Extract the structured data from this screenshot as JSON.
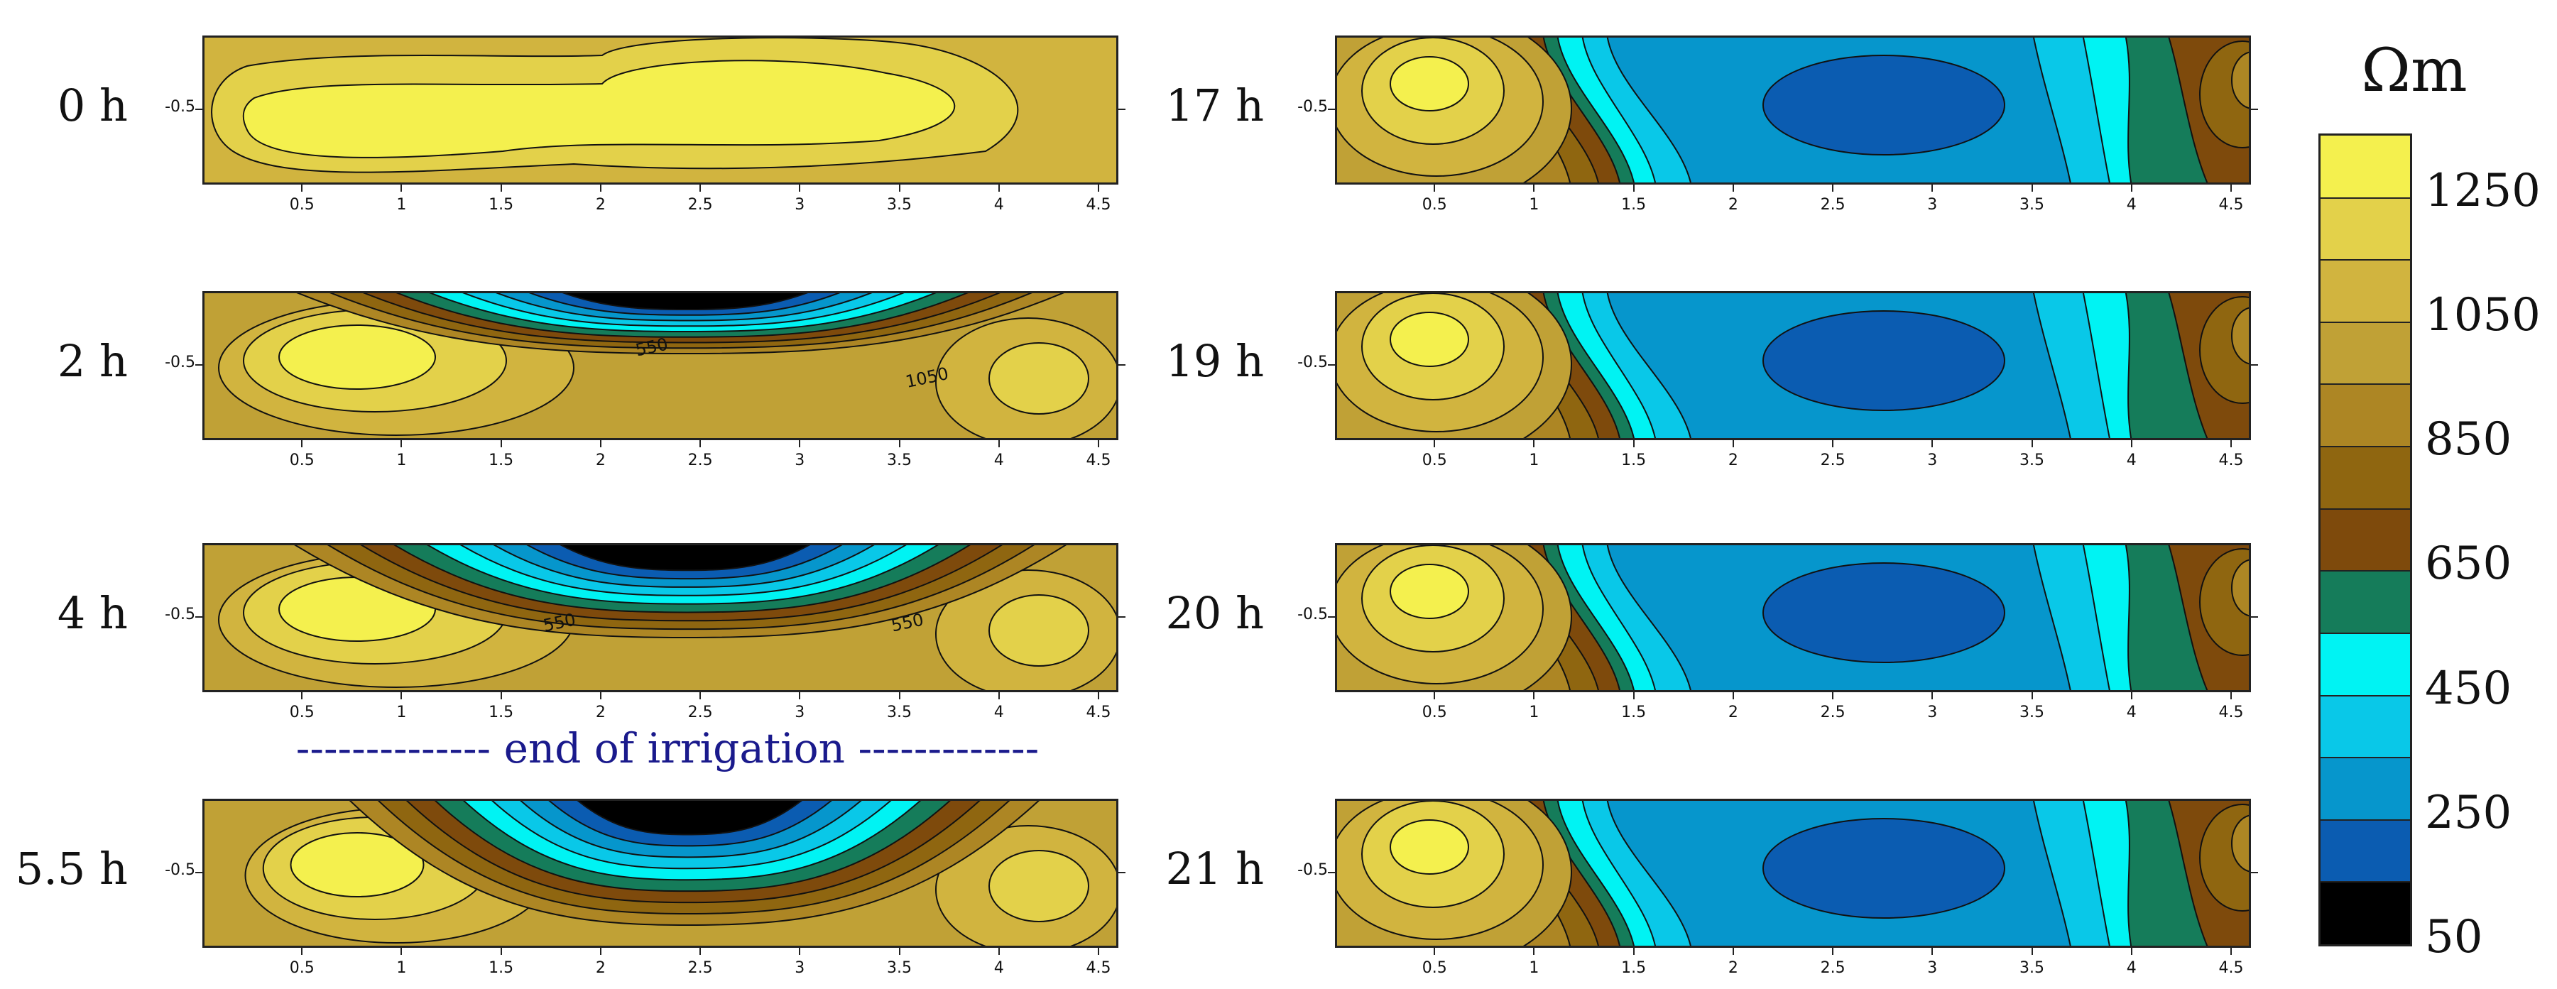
{
  "chart_data": {
    "type": "heatmap",
    "title": "",
    "unit": "Ωm",
    "annotation": "-------------- end of irrigation -------------",
    "colorbar": {
      "ticks": [
        1250,
        1050,
        850,
        650,
        450,
        250,
        50
      ],
      "levels": [
        1350,
        1250,
        1150,
        1050,
        950,
        850,
        750,
        650,
        550,
        450,
        350,
        250,
        150,
        50
      ],
      "colors": [
        "#f4f04e",
        "#e3d14a",
        "#d1b43f",
        "#c0a136",
        "#ad8624",
        "#8f6610",
        "#7e4a0c",
        "#157c5a",
        "#00f3f3",
        "#09c8e8",
        "#0696cc",
        "#0b5cb1",
        "#000000"
      ]
    },
    "x_ticks": [
      "0.5",
      "1",
      "1.5",
      "2",
      "2.5",
      "3",
      "3.5",
      "4",
      "4.5"
    ],
    "xlim": [
      0,
      4.6
    ],
    "y_tick": "-0.5",
    "ylim": [
      -1,
      0
    ],
    "panels": [
      {
        "time": "0 h",
        "min_ohm_m": 1150,
        "max_ohm_m": 1350,
        "contour_labels": []
      },
      {
        "time": "2 h",
        "min_ohm_m": 50,
        "max_ohm_m": 1350,
        "contour_labels": [
          "550",
          "1050"
        ]
      },
      {
        "time": "4 h",
        "min_ohm_m": 50,
        "max_ohm_m": 1350,
        "contour_labels": [
          "550",
          "550"
        ]
      },
      {
        "time": "5.5 h",
        "min_ohm_m": 50,
        "max_ohm_m": 1350,
        "contour_labels": []
      },
      {
        "time": "17 h",
        "min_ohm_m": 150,
        "max_ohm_m": 1350,
        "contour_labels": []
      },
      {
        "time": "19 h",
        "min_ohm_m": 150,
        "max_ohm_m": 1350,
        "contour_labels": []
      },
      {
        "time": "20 h",
        "min_ohm_m": 150,
        "max_ohm_m": 1350,
        "contour_labels": []
      },
      {
        "time": "21 h",
        "min_ohm_m": 150,
        "max_ohm_m": 1350,
        "contour_labels": []
      }
    ]
  }
}
